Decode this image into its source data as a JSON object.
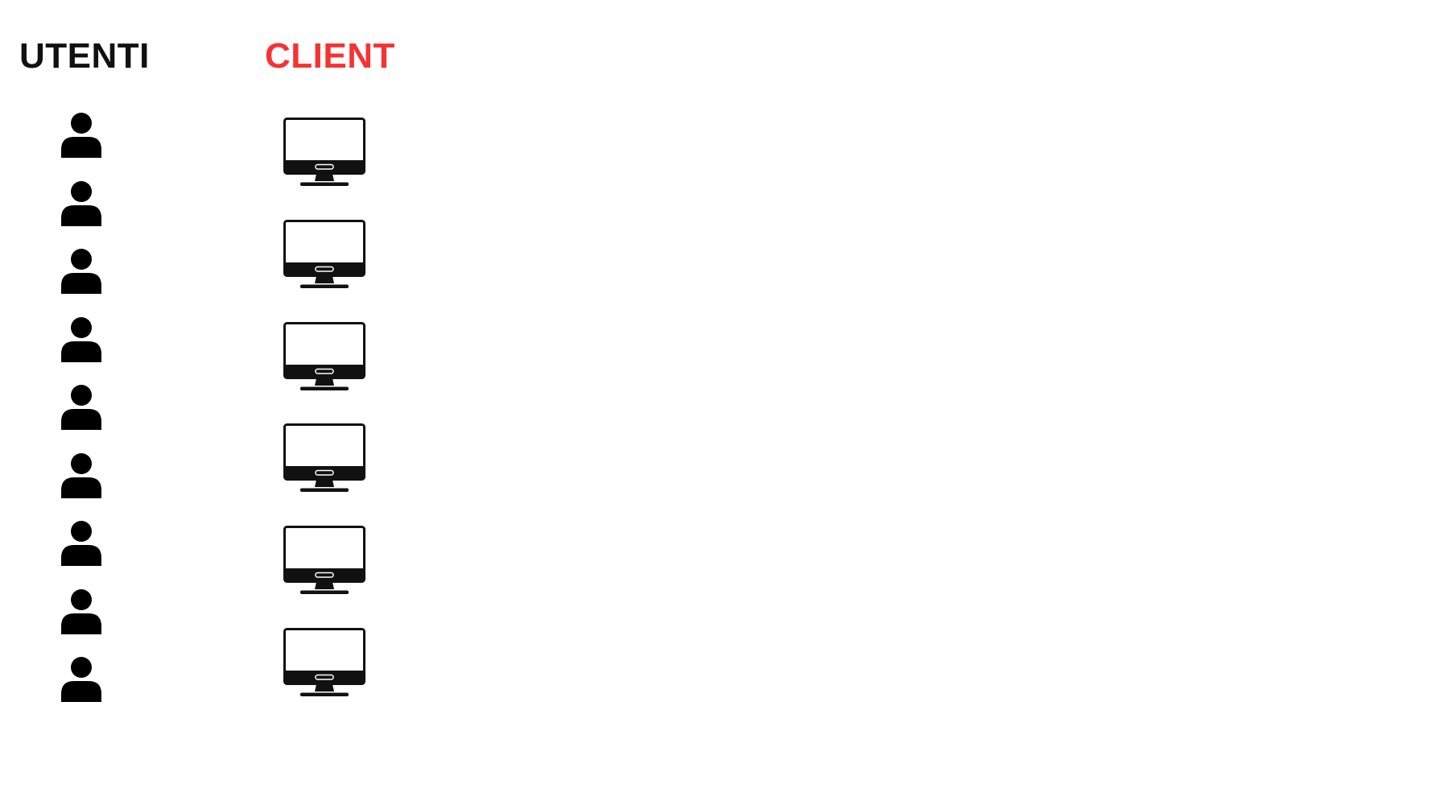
{
  "diagram": {
    "users": {
      "title": "UTENTI",
      "title_color": "#111111",
      "icon": "user-icon",
      "count": 9
    },
    "clients": {
      "title": "CLIENT",
      "title_color": "#f53333",
      "icon": "monitor-icon",
      "count": 6
    }
  }
}
